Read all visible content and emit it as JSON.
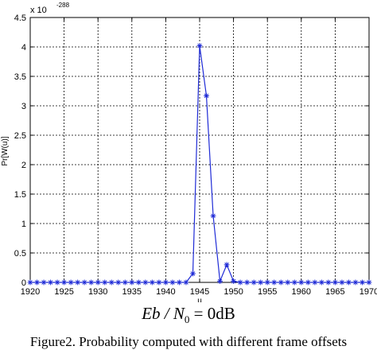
{
  "chart_data": {
    "type": "line",
    "title": "",
    "xlabel": "u",
    "ylabel": "Pr[W(u)]",
    "y_exponent": {
      "base": "x 10",
      "power": "-288"
    },
    "xlim": [
      1920,
      1970
    ],
    "ylim": [
      0,
      4.5
    ],
    "xticks": [
      1920,
      1925,
      1930,
      1935,
      1940,
      1945,
      1950,
      1955,
      1960,
      1965,
      1970
    ],
    "yticks": [
      0,
      0.5,
      1,
      1.5,
      2,
      2.5,
      3,
      3.5,
      4,
      4.5
    ],
    "grid": true,
    "line_color": "#1f2bd6",
    "marker": "star",
    "series": [
      {
        "x": [
          1920,
          1921,
          1922,
          1923,
          1924,
          1925,
          1926,
          1927,
          1928,
          1929,
          1930,
          1931,
          1932,
          1933,
          1934,
          1935,
          1936,
          1937,
          1938,
          1939,
          1940,
          1941,
          1942,
          1943,
          1944,
          1945,
          1946,
          1947,
          1948,
          1949,
          1950,
          1951,
          1952,
          1953,
          1954,
          1955,
          1956,
          1957,
          1958,
          1959,
          1960,
          1961,
          1962,
          1963,
          1964,
          1965,
          1966,
          1967,
          1968,
          1969,
          1970
        ],
        "y": [
          0,
          0,
          0,
          0,
          0,
          0,
          0,
          0,
          0,
          0,
          0,
          0,
          0,
          0,
          0,
          0,
          0,
          0,
          0,
          0,
          0,
          0,
          0,
          0,
          0.15,
          4.02,
          3.17,
          1.13,
          0.02,
          0.3,
          0.02,
          0,
          0,
          0,
          0,
          0,
          0,
          0,
          0,
          0,
          0,
          0,
          0,
          0,
          0,
          0,
          0,
          0,
          0,
          0,
          0
        ]
      }
    ]
  },
  "formula": {
    "main": "Eb / N",
    "sub": "0",
    "rest": " = 0dB"
  },
  "caption": "Figure2. Probability computed with different frame offsets"
}
